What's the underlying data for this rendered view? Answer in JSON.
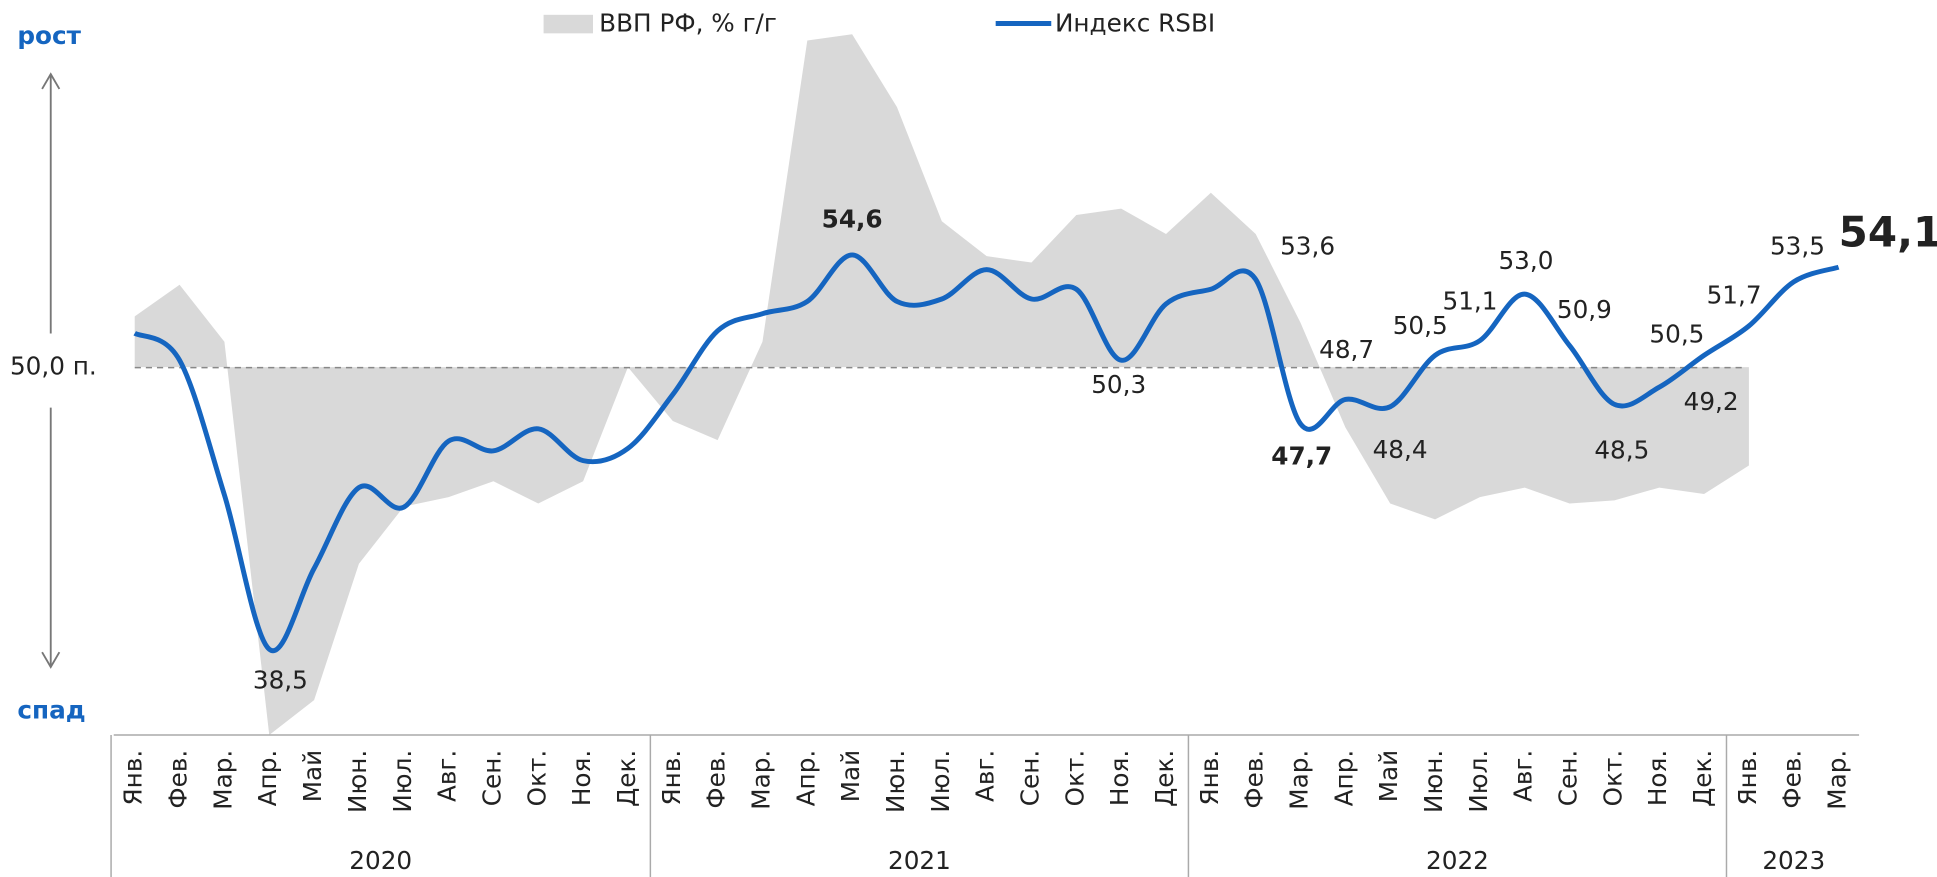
{
  "chart_data": {
    "type": "line",
    "legend_position": "top",
    "categories": [
      "Янв.",
      "Фев.",
      "Мар.",
      "Апр.",
      "Май",
      "Июн.",
      "Июл.",
      "Авг.",
      "Сен.",
      "Окт.",
      "Ноя.",
      "Дек.",
      "Янв.",
      "Фев.",
      "Мар.",
      "Апр.",
      "Май",
      "Июн.",
      "Июл.",
      "Авг.",
      "Сен.",
      "Окт.",
      "Ноя.",
      "Дек.",
      "Янв.",
      "Фев.",
      "Мар.",
      "Апр.",
      "Май",
      "Июн.",
      "Июл.",
      "Авг.",
      "Сен.",
      "Окт.",
      "Ноя.",
      "Дек.",
      "Янв.",
      "Фев.",
      "Мар."
    ],
    "years": [
      "2020",
      "2021",
      "2022",
      "2023"
    ],
    "top_label": "рост",
    "bottom_label": "спад",
    "ylim": [
      35,
      64
    ],
    "yticks": [
      {
        "value": 50,
        "label": "50,0 п."
      }
    ],
    "y2lim": [
      -11.6,
      10.8
    ],
    "series": [
      {
        "name": "ВВП РФ, % г/г",
        "color": "#d9d9d9",
        "axis": "y2",
        "kind": "area",
        "values": [
          1.6,
          2.6,
          0.8,
          -11.6,
          -10.5,
          -6.2,
          -4.4,
          -4.1,
          -3.6,
          -4.3,
          -3.6,
          0.0,
          -1.7,
          -2.3,
          0.8,
          10.3,
          10.5,
          8.2,
          4.6,
          3.5,
          3.3,
          4.8,
          5.0,
          4.2,
          5.5,
          4.2,
          1.4,
          -1.9,
          -4.3,
          -4.8,
          -4.1,
          -3.8,
          -4.3,
          -4.2,
          -3.8,
          -4.0,
          -3.1,
          null,
          null
        ]
      },
      {
        "name": "Индекс RSBI",
        "color": "#1565c0",
        "kind": "line",
        "values": [
          51.4,
          50.3,
          44.8,
          38.5,
          41.8,
          45.1,
          44.3,
          47.0,
          46.6,
          47.5,
          46.2,
          46.7,
          48.9,
          51.5,
          52.2,
          52.7,
          54.6,
          52.7,
          52.8,
          54.0,
          52.8,
          53.2,
          50.3,
          52.6,
          53.2,
          53.6,
          47.7,
          48.7,
          48.4,
          50.5,
          51.1,
          53.0,
          50.9,
          48.5,
          49.2,
          50.5,
          51.7,
          53.5,
          54.1
        ],
        "value_labels": [
          null,
          null,
          null,
          "38,5",
          null,
          null,
          null,
          null,
          null,
          null,
          null,
          null,
          null,
          null,
          null,
          null,
          "54,6",
          null,
          null,
          null,
          null,
          null,
          "50,3",
          null,
          null,
          "53,6",
          "47,7",
          "48,7",
          "48,4",
          "50,5",
          "51,1",
          "53,0",
          "50,9",
          "48,5",
          "49,2",
          "50,5",
          "51,7",
          "53,5",
          "54,1"
        ]
      }
    ]
  }
}
